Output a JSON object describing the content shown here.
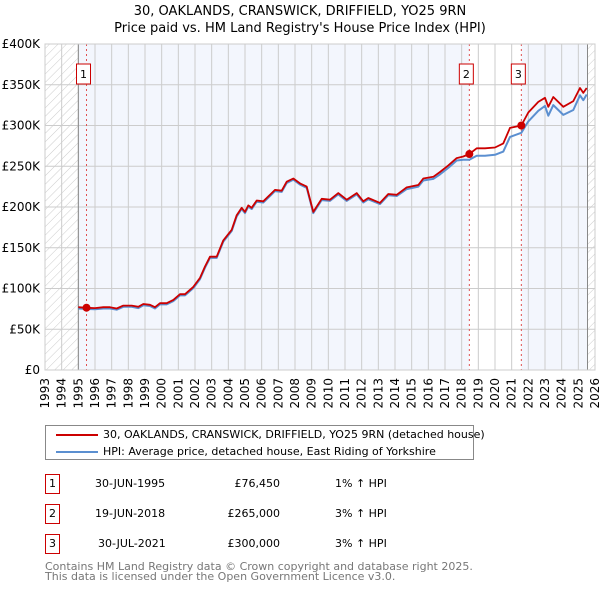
{
  "title": {
    "line1": "30, OAKLANDS, CRANSWICK, DRIFFIELD, YO25 9RN",
    "line2": "Price paid vs. HM Land Registry's House Price Index (HPI)"
  },
  "colors": {
    "property": "#cc0000",
    "hpi": "#5b8fd0",
    "fill": "#f3f6fd",
    "grid": "#cccccc"
  },
  "legend": {
    "property": "30, OAKLANDS, CRANSWICK, DRIFFIELD, YO25 9RN (detached house)",
    "hpi": "HPI: Average price, detached house, East Riding of Yorkshire"
  },
  "sales": [
    {
      "num": "1",
      "date": "30-JUN-1995",
      "price": "£76,450",
      "hpi": "1% ↑ HPI",
      "year": 1995.49,
      "value": 76.45
    },
    {
      "num": "2",
      "date": "19-JUN-2018",
      "price": "£265,000",
      "hpi": "3% ↑ HPI",
      "year": 2018.46,
      "value": 265
    },
    {
      "num": "3",
      "date": "30-JUL-2021",
      "price": "£300,000",
      "hpi": "3% ↑ HPI",
      "year": 2021.58,
      "value": 300
    }
  ],
  "footer": {
    "line1": "Contains HM Land Registry data © Crown copyright and database right 2025.",
    "line2": "This data is licensed under the Open Government Licence v3.0."
  },
  "chart_data": {
    "type": "line",
    "title": "30, OAKLANDS, CRANSWICK, DRIFFIELD, YO25 9RN — Price paid vs. HM Land Registry's House Price Index (HPI)",
    "xlabel": "",
    "ylabel": "",
    "xlim": [
      1993,
      2026
    ],
    "ylim": [
      0,
      400
    ],
    "y_unit": "£K",
    "data_start": 1995,
    "data_end": 2025.55,
    "xticks": [
      "1993",
      "1994",
      "1995",
      "1996",
      "1997",
      "1998",
      "1999",
      "2000",
      "2001",
      "2002",
      "2003",
      "2004",
      "2005",
      "2006",
      "2007",
      "2008",
      "2009",
      "2010",
      "2011",
      "2012",
      "2013",
      "2014",
      "2015",
      "2016",
      "2017",
      "2018",
      "2019",
      "2020",
      "2021",
      "2022",
      "2023",
      "2024",
      "2025",
      "2026"
    ],
    "yticks": [
      {
        "v": 0,
        "label": "£0"
      },
      {
        "v": 50,
        "label": "£50K"
      },
      {
        "v": 100,
        "label": "£100K"
      },
      {
        "v": 150,
        "label": "£150K"
      },
      {
        "v": 200,
        "label": "£200K"
      },
      {
        "v": 250,
        "label": "£250K"
      },
      {
        "v": 300,
        "label": "£300K"
      },
      {
        "v": 350,
        "label": "£350K"
      },
      {
        "v": 400,
        "label": "£400K"
      }
    ],
    "grid": true,
    "legend_position": "below",
    "x": [
      1995.0,
      1995.4,
      1996.0,
      1996.5,
      1996.9,
      1997.3,
      1997.7,
      1998.2,
      1998.6,
      1998.9,
      1999.3,
      1999.6,
      1999.9,
      2000.3,
      2000.7,
      2001.1,
      2001.4,
      2001.9,
      2002.3,
      2002.6,
      2002.9,
      2003.3,
      2003.7,
      2004.2,
      2004.5,
      2004.8,
      2005.0,
      2005.2,
      2005.4,
      2005.7,
      2006.1,
      2006.6,
      2006.8,
      2007.2,
      2007.5,
      2007.9,
      2008.3,
      2008.7,
      2009.1,
      2009.6,
      2010.1,
      2010.6,
      2011.1,
      2011.7,
      2012.1,
      2012.4,
      2013.1,
      2013.6,
      2014.1,
      2014.7,
      2015.4,
      2015.7,
      2016.3,
      2016.7,
      2017.2,
      2017.7,
      2018.1,
      2018.46,
      2018.9,
      2019.4,
      2020.0,
      2020.5,
      2020.9,
      2021.58,
      2022.0,
      2022.6,
      2023.0,
      2023.2,
      2023.5,
      2024.1,
      2024.7,
      2025.1,
      2025.3,
      2025.5
    ],
    "series": [
      {
        "name": "30, OAKLANDS, CRANSWICK, DRIFFIELD, YO25 9RN (detached house)",
        "color": "#cc0000",
        "values": [
          77,
          76.5,
          76,
          77,
          77,
          75.5,
          79,
          79,
          77.5,
          81,
          80,
          77,
          82,
          82,
          86,
          93,
          93,
          102,
          113,
          127,
          139,
          139,
          159,
          172,
          190,
          199,
          194,
          202,
          199,
          208,
          207,
          217,
          221,
          220,
          231,
          235,
          229,
          225,
          194,
          210,
          209,
          217,
          209,
          217,
          207,
          211,
          205,
          216,
          215,
          224,
          227,
          235,
          237,
          243,
          251,
          260,
          262,
          265,
          272,
          272,
          273,
          278,
          297,
          300,
          316,
          329,
          334,
          323,
          335,
          323,
          330,
          346,
          340,
          346
        ]
      },
      {
        "name": "HPI: Average price, detached house, East Riding of Yorkshire",
        "color": "#5b8fd0",
        "values": [
          75.5,
          75,
          74.5,
          75.5,
          75.5,
          74,
          77.5,
          77.5,
          76,
          79.5,
          78.5,
          75.5,
          80.5,
          80.5,
          84.5,
          91.5,
          91.5,
          100.5,
          111.5,
          125.5,
          137.5,
          137.5,
          157.5,
          170.5,
          188.5,
          197.5,
          192.5,
          200.5,
          197.5,
          206.5,
          205.5,
          215.5,
          219.5,
          218.5,
          229.5,
          233.5,
          227.5,
          223.5,
          192.5,
          208.5,
          207.5,
          215.5,
          207.5,
          215.5,
          205.5,
          209.5,
          203.5,
          214.5,
          213.5,
          222,
          225,
          232.5,
          234.5,
          240,
          248,
          257,
          258,
          258,
          263,
          263,
          264,
          268,
          286,
          291,
          305,
          318,
          324,
          312,
          325,
          313,
          319,
          337,
          331,
          338
        ]
      }
    ]
  }
}
